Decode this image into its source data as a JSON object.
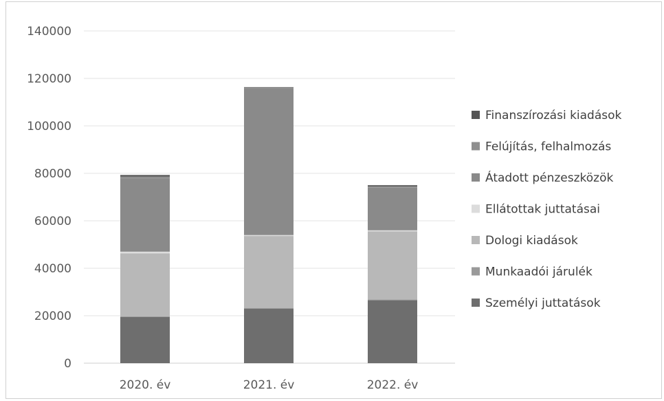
{
  "chart_data": {
    "type": "bar",
    "stacked": true,
    "categories": [
      "2020. év",
      "2021. év",
      "2022. év"
    ],
    "ylim": [
      0,
      140000
    ],
    "yticks": [
      0,
      20000,
      40000,
      60000,
      80000,
      100000,
      120000,
      140000
    ],
    "ytick_labels": [
      "0",
      "20000",
      "40000",
      "60000",
      "80000",
      "100000",
      "120000",
      "140000"
    ],
    "grid": true,
    "legend_position": "right",
    "series": [
      {
        "name": "Személyi juttatások",
        "color": "#6e6e6e",
        "values": [
          19500,
          23000,
          26500
        ]
      },
      {
        "name": "Munkaadói járulék",
        "color": "#9a9a9a",
        "values": [
          300,
          300,
          300
        ]
      },
      {
        "name": "Dologi kiadások",
        "color": "#b8b8b8",
        "values": [
          26500,
          30300,
          28700
        ]
      },
      {
        "name": "Ellátottak juttatásai",
        "color": "#dcdcdc",
        "values": [
          700,
          400,
          500
        ]
      },
      {
        "name": "Átadott pénzeszközök",
        "color": "#8a8a8a",
        "values": [
          30800,
          61700,
          18000
        ]
      },
      {
        "name": "Felújítás, felhalmozás",
        "color": "#8f8f8f",
        "values": [
          800,
          300,
          500
        ]
      },
      {
        "name": "Finanszírozási kiadások",
        "color": "#555555",
        "values": [
          700,
          300,
          500
        ]
      }
    ]
  }
}
